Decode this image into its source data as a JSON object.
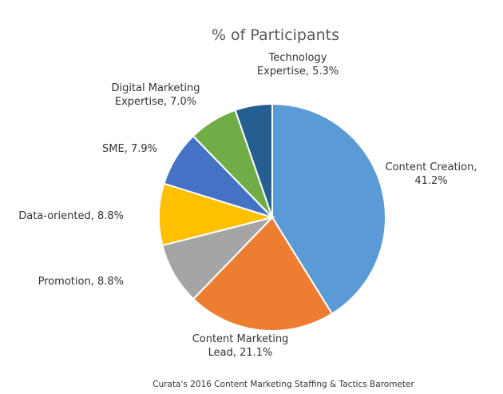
{
  "chart_data": {
    "type": "pie",
    "title": "% of Participants",
    "source": "Curata's 2016 Content Marketing  Staffing & Tactics Barometer",
    "slices": [
      {
        "label_lines": [
          "Content Creation,",
          "41.2%"
        ],
        "category": "Content Creation",
        "value": 41.2,
        "color": "#5B9BD5"
      },
      {
        "label_lines": [
          "Content Marketing",
          "Lead, 21.1%"
        ],
        "category": "Content Marketing Lead",
        "value": 21.1,
        "color": "#ED7D31"
      },
      {
        "label_lines": [
          "Promotion, 8.8%"
        ],
        "category": "Promotion",
        "value": 8.8,
        "color": "#A5A5A5"
      },
      {
        "label_lines": [
          "Data-oriented, 8.8%"
        ],
        "category": "Data-oriented",
        "value": 8.8,
        "color": "#FFC000"
      },
      {
        "label_lines": [
          "SME, 7.9%"
        ],
        "category": "SME",
        "value": 7.9,
        "color": "#4472C4"
      },
      {
        "label_lines": [
          "Digital Marketing",
          "Expertise, 7.0%"
        ],
        "category": "Digital Marketing Expertise",
        "value": 7.0,
        "color": "#70AD47"
      },
      {
        "label_lines": [
          "Technology",
          "Expertise, 5.3%"
        ],
        "category": "Technology Expertise",
        "value": 5.3,
        "color": "#255E91"
      }
    ]
  }
}
